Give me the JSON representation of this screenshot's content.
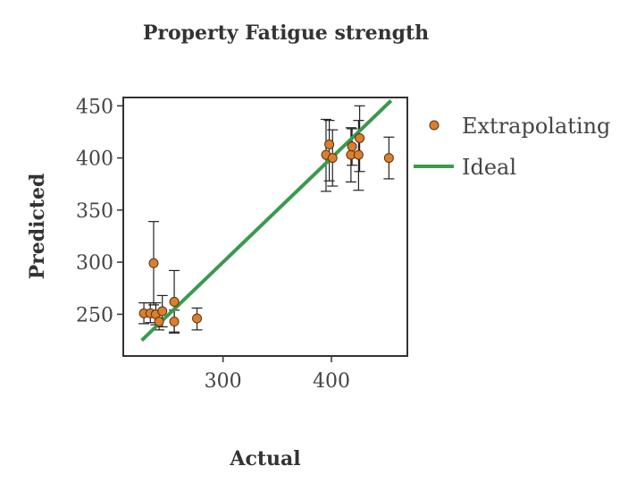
{
  "chart_data": {
    "type": "scatter",
    "title": "Property Fatigue strength",
    "xlabel": "Actual",
    "ylabel": "Predicted",
    "xlim": [
      208,
      470
    ],
    "ylim": [
      210,
      458
    ],
    "xticks": [
      300,
      400
    ],
    "yticks": [
      250,
      300,
      350,
      400,
      450
    ],
    "grid": false,
    "legend_position": "right",
    "series": [
      {
        "name": "Extrapolating",
        "kind": "points-with-errorbars",
        "color": "#d97f2e",
        "points": [
          {
            "x": 227,
            "y": 251,
            "lo": 241,
            "hi": 261
          },
          {
            "x": 233,
            "y": 251,
            "lo": 242,
            "hi": 261
          },
          {
            "x": 236,
            "y": 299,
            "lo": 259,
            "hi": 339
          },
          {
            "x": 238,
            "y": 250,
            "lo": 240,
            "hi": 261
          },
          {
            "x": 241,
            "y": 243,
            "lo": 235,
            "hi": 251
          },
          {
            "x": 244,
            "y": 253,
            "lo": 238,
            "hi": 268
          },
          {
            "x": 255,
            "y": 262,
            "lo": 232,
            "hi": 292
          },
          {
            "x": 255,
            "y": 243,
            "lo": 233,
            "hi": 254
          },
          {
            "x": 276,
            "y": 246,
            "lo": 235,
            "hi": 256
          },
          {
            "x": 395,
            "y": 403,
            "lo": 368,
            "hi": 437
          },
          {
            "x": 398,
            "y": 413,
            "lo": 378,
            "hi": 436
          },
          {
            "x": 401,
            "y": 400,
            "lo": 373,
            "hi": 427
          },
          {
            "x": 418,
            "y": 403,
            "lo": 377,
            "hi": 429
          },
          {
            "x": 419,
            "y": 411,
            "lo": 393,
            "hi": 428
          },
          {
            "x": 425,
            "y": 403,
            "lo": 369,
            "hi": 436
          },
          {
            "x": 426,
            "y": 419,
            "lo": 387,
            "hi": 450
          },
          {
            "x": 453,
            "y": 400,
            "lo": 380,
            "hi": 420
          }
        ]
      },
      {
        "name": "Ideal",
        "kind": "line",
        "color": "#3a9a4f",
        "x": [
          225,
          455
        ],
        "y": [
          225,
          455
        ]
      }
    ]
  }
}
